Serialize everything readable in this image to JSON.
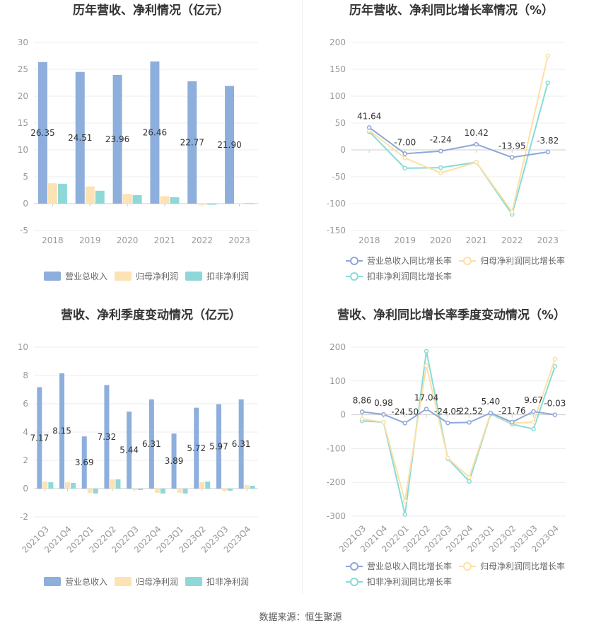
{
  "source": "数据来源：恒生聚源",
  "legend": {
    "revenue": "营业总收入",
    "net_profit": "归母净利润",
    "deducted_profit": "扣非净利润",
    "revenue_growth": "营业总收入同比增长率",
    "net_profit_growth": "归母净利润同比增长率",
    "deducted_profit_growth": "扣非净利润同比增长率"
  },
  "colors": {
    "revenue": "#8eaedc",
    "net_profit": "#fde2b4",
    "deducted_profit": "#8fd8d8",
    "revenue_line": "#8ea7d8",
    "net_profit_line": "#fde0a6",
    "deducted_line": "#86dcd6"
  },
  "chart_data": [
    {
      "type": "bar",
      "title": "历年营收、净利情况（亿元）",
      "categories": [
        "2018",
        "2019",
        "2020",
        "2021",
        "2022",
        "2023"
      ],
      "ylim": [
        -5,
        30
      ],
      "yticks": [
        -5,
        0,
        5,
        10,
        15,
        20,
        25,
        30
      ],
      "series": [
        {
          "name": "营业总收入",
          "values": [
            26.35,
            24.51,
            23.96,
            26.46,
            22.77,
            21.9
          ],
          "labels": [
            "26.35",
            "24.51",
            "23.96",
            "26.46",
            "22.77",
            "21.90"
          ]
        },
        {
          "name": "归母净利润",
          "values": [
            3.8,
            3.2,
            1.8,
            1.4,
            -0.2,
            0.1
          ]
        },
        {
          "name": "扣非净利润",
          "values": [
            3.7,
            2.4,
            1.6,
            1.2,
            -0.2,
            0.1
          ]
        }
      ],
      "legend_position": "bottom"
    },
    {
      "type": "line",
      "title": "历年营收、净利同比增长率情况（%）",
      "categories": [
        "2018",
        "2019",
        "2020",
        "2021",
        "2022",
        "2023"
      ],
      "ylim": [
        -150,
        200
      ],
      "yticks": [
        -150,
        -100,
        -50,
        0,
        50,
        100,
        150,
        200
      ],
      "series": [
        {
          "name": "营业总收入同比增长率",
          "values": [
            41.64,
            -7.0,
            -2.24,
            10.42,
            -13.95,
            -3.82
          ],
          "labels": [
            "41.64",
            "-7.00",
            "-2.24",
            "10.42",
            "-13.95",
            "-3.82"
          ]
        },
        {
          "name": "归母净利润同比增长率",
          "values": [
            36,
            -15,
            -43,
            -23,
            -115,
            175
          ]
        },
        {
          "name": "扣非净利润同比增长率",
          "values": [
            34,
            -34,
            -33,
            -23,
            -120,
            125
          ]
        }
      ],
      "legend_position": "bottom"
    },
    {
      "type": "bar",
      "title": "营收、净利季度变动情况（亿元）",
      "categories": [
        "2021Q3",
        "2021Q4",
        "2022Q1",
        "2022Q2",
        "2022Q3",
        "2022Q4",
        "2023Q1",
        "2023Q2",
        "2023Q3",
        "2023Q4"
      ],
      "ylim": [
        -2,
        10
      ],
      "yticks": [
        -2,
        0,
        2,
        4,
        6,
        8,
        10
      ],
      "series": [
        {
          "name": "营业总收入",
          "values": [
            7.17,
            8.15,
            3.69,
            7.32,
            5.44,
            6.31,
            3.89,
            5.72,
            5.97,
            6.31
          ],
          "labels": [
            "7.17",
            "8.15",
            "3.69",
            "7.32",
            "5.44",
            "6.31",
            "3.89",
            "5.72",
            "5.97",
            "6.31"
          ]
        },
        {
          "name": "归母净利润",
          "values": [
            0.5,
            0.45,
            -0.3,
            0.65,
            -0.1,
            -0.3,
            -0.3,
            0.45,
            -0.15,
            0.25
          ]
        },
        {
          "name": "扣非净利润",
          "values": [
            0.45,
            0.4,
            -0.35,
            0.65,
            -0.1,
            -0.35,
            -0.35,
            0.5,
            -0.15,
            0.2
          ]
        }
      ],
      "legend_position": "bottom"
    },
    {
      "type": "line",
      "title": "营收、净利同比增长率季度变动情况（%）",
      "categories": [
        "2021Q3",
        "2021Q4",
        "2022Q1",
        "2022Q2",
        "2022Q3",
        "2022Q4",
        "2023Q1",
        "2023Q2",
        "2023Q3",
        "2023Q4"
      ],
      "ylim": [
        -300,
        200
      ],
      "yticks": [
        -300,
        -200,
        -100,
        0,
        100,
        200
      ],
      "series": [
        {
          "name": "营业总收入同比增长率",
          "values": [
            8.86,
            0.98,
            -24.5,
            17.04,
            -24.05,
            -22.52,
            5.4,
            -21.76,
            9.67,
            -0.03
          ],
          "labels": [
            "8.86",
            "0.98",
            "-24.50",
            "17.04",
            "-24.05",
            "-22.52",
            "5.40",
            "-21.76",
            "9.67",
            "-0.03"
          ]
        },
        {
          "name": "归母净利润同比增长率",
          "values": [
            -12,
            -22,
            -255,
            145,
            -128,
            -185,
            5,
            -25,
            -22,
            165
          ]
        },
        {
          "name": "扣非净利润同比增长率",
          "values": [
            -18,
            -22,
            -295,
            188,
            -130,
            -197,
            3,
            -28,
            -42,
            143
          ]
        }
      ],
      "legend_position": "bottom"
    }
  ]
}
